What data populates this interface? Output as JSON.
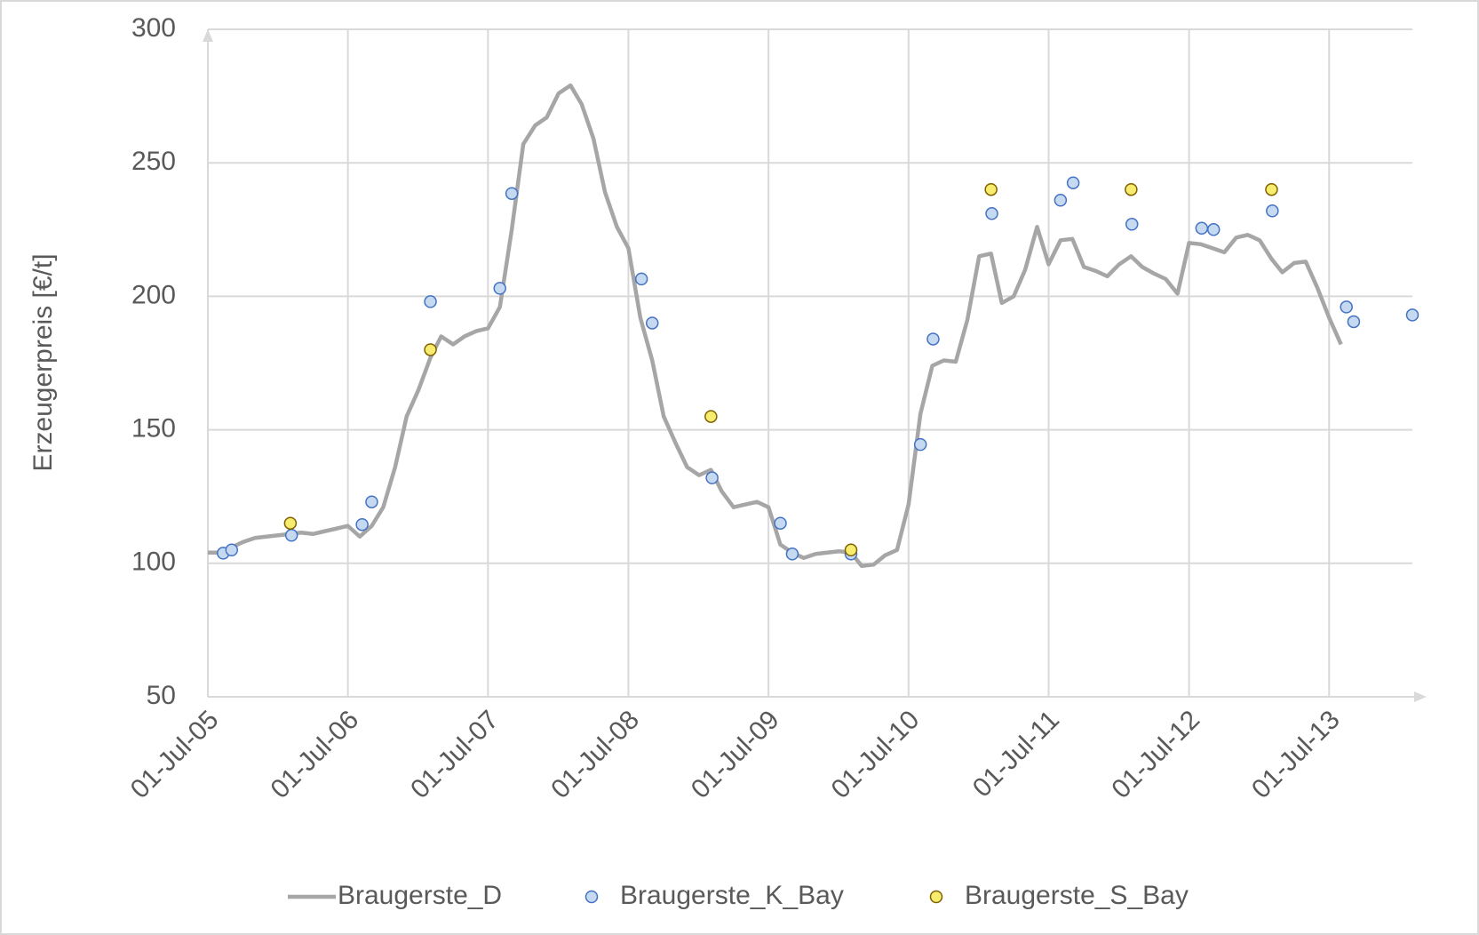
{
  "chart_data": {
    "type": "line",
    "y_axis_label": "Erzeugerpreis [€/t]",
    "ylim": [
      50,
      300
    ],
    "yticks": [
      50,
      100,
      150,
      200,
      250,
      300
    ],
    "xlim": [
      "2005-07-01",
      "2014-02-03"
    ],
    "xticks": [
      {
        "value": "2005-07-01",
        "label": "01-Jul-05"
      },
      {
        "value": "2006-07-01",
        "label": "01-Jul-06"
      },
      {
        "value": "2007-07-01",
        "label": "01-Jul-07"
      },
      {
        "value": "2008-07-01",
        "label": "01-Jul-08"
      },
      {
        "value": "2009-07-01",
        "label": "01-Jul-09"
      },
      {
        "value": "2010-07-01",
        "label": "01-Jul-10"
      },
      {
        "value": "2011-07-01",
        "label": "01-Jul-11"
      },
      {
        "value": "2012-07-01",
        "label": "01-Jul-12"
      },
      {
        "value": "2013-07-01",
        "label": "01-Jul-13"
      }
    ],
    "grid": true,
    "legend": "bottom",
    "series": [
      {
        "name": "Braugerste_D",
        "style": "line",
        "color": "#a6a6a6",
        "x": [
          "2005-07-01",
          "2005-08-01",
          "2005-09-01",
          "2005-10-01",
          "2005-11-01",
          "2005-12-01",
          "2006-01-01",
          "2006-02-01",
          "2006-03-01",
          "2006-04-01",
          "2006-05-01",
          "2006-06-01",
          "2006-07-01",
          "2006-08-01",
          "2006-09-01",
          "2006-10-01",
          "2006-11-01",
          "2006-12-01",
          "2007-01-01",
          "2007-02-01",
          "2007-03-01",
          "2007-04-01",
          "2007-05-01",
          "2007-06-01",
          "2007-07-01",
          "2007-08-01",
          "2007-09-01",
          "2007-10-01",
          "2007-11-01",
          "2007-12-01",
          "2008-01-01",
          "2008-02-01",
          "2008-03-01",
          "2008-04-01",
          "2008-05-01",
          "2008-06-01",
          "2008-07-01",
          "2008-08-01",
          "2008-09-01",
          "2008-10-01",
          "2008-11-01",
          "2008-12-01",
          "2009-01-01",
          "2009-02-01",
          "2009-03-01",
          "2009-04-01",
          "2009-05-01",
          "2009-06-01",
          "2009-07-01",
          "2009-08-01",
          "2009-09-01",
          "2009-10-01",
          "2009-11-01",
          "2009-12-01",
          "2010-01-01",
          "2010-02-01",
          "2010-03-01",
          "2010-04-01",
          "2010-05-01",
          "2010-06-01",
          "2010-07-01",
          "2010-08-01",
          "2010-09-01",
          "2010-10-01",
          "2010-11-01",
          "2010-12-01",
          "2011-01-01",
          "2011-02-01",
          "2011-03-01",
          "2011-04-01",
          "2011-05-01",
          "2011-06-01",
          "2011-07-01",
          "2011-08-01",
          "2011-09-01",
          "2011-10-01",
          "2011-11-01",
          "2011-12-01",
          "2012-01-01",
          "2012-02-01",
          "2012-03-01",
          "2012-04-01",
          "2012-05-01",
          "2012-06-01",
          "2012-07-01",
          "2012-08-01",
          "2012-09-01",
          "2012-10-01",
          "2012-11-01",
          "2012-12-01",
          "2013-01-01",
          "2013-02-01",
          "2013-03-01",
          "2013-04-01",
          "2013-05-01",
          "2013-06-01",
          "2013-07-01",
          "2013-08-01"
        ],
        "values": [
          104,
          104,
          106,
          108,
          109.5,
          110,
          110.5,
          111,
          111.5,
          111,
          112,
          113,
          114,
          110,
          114,
          121,
          136,
          155,
          165,
          177,
          185,
          182,
          185,
          187,
          188,
          196,
          225,
          257,
          264,
          267,
          276,
          279,
          272,
          259,
          239,
          226,
          218,
          192,
          176,
          155,
          145,
          136,
          133,
          135,
          127,
          121,
          122,
          123,
          121,
          107,
          104,
          102,
          103.5,
          104,
          104.5,
          104,
          99,
          99.5,
          103,
          105,
          122,
          156,
          174,
          176,
          175.5,
          191,
          215,
          216,
          197.5,
          200,
          210,
          226,
          212,
          221,
          221.5,
          211,
          209.5,
          207.5,
          212,
          215,
          211,
          208.5,
          206.5,
          201,
          220,
          219.5,
          218,
          216.5,
          222,
          223,
          221,
          214,
          209,
          212.5,
          213,
          203,
          192,
          182
        ]
      },
      {
        "name": "Braugerste_K_Bay",
        "style": "marker",
        "color": "#c5d9f1",
        "edge": "#4472c4",
        "x": [
          "2005-08-10",
          "2005-09-01",
          "2006-02-04",
          "2006-08-07",
          "2006-09-01",
          "2007-02-01",
          "2007-08-01",
          "2007-09-01",
          "2008-08-04",
          "2008-09-01",
          "2009-02-04",
          "2009-08-01",
          "2009-09-01",
          "2010-02-01",
          "2010-08-01",
          "2010-09-03",
          "2011-02-03",
          "2011-08-01",
          "2011-09-03",
          "2012-02-03",
          "2012-08-03",
          "2012-09-03",
          "2013-02-03",
          "2013-08-15",
          "2013-09-03",
          "2014-02-03"
        ],
        "values": [
          103.8,
          105,
          110.5,
          114.5,
          123,
          198,
          203,
          238.5,
          206.5,
          190,
          132,
          115,
          103.5,
          103.5,
          144.5,
          184,
          231,
          236,
          242.5,
          227,
          225.5,
          225,
          232,
          196,
          190.5,
          193
        ]
      },
      {
        "name": "Braugerste_S_Bay",
        "style": "marker",
        "color": "#f7ec6e",
        "edge": "#7f6000",
        "x": [
          "2006-02-01",
          "2007-02-01",
          "2009-02-01",
          "2010-02-01",
          "2011-02-01",
          "2012-02-01",
          "2013-02-01"
        ],
        "values": [
          115,
          180,
          155,
          105,
          240,
          240,
          240
        ]
      }
    ]
  }
}
